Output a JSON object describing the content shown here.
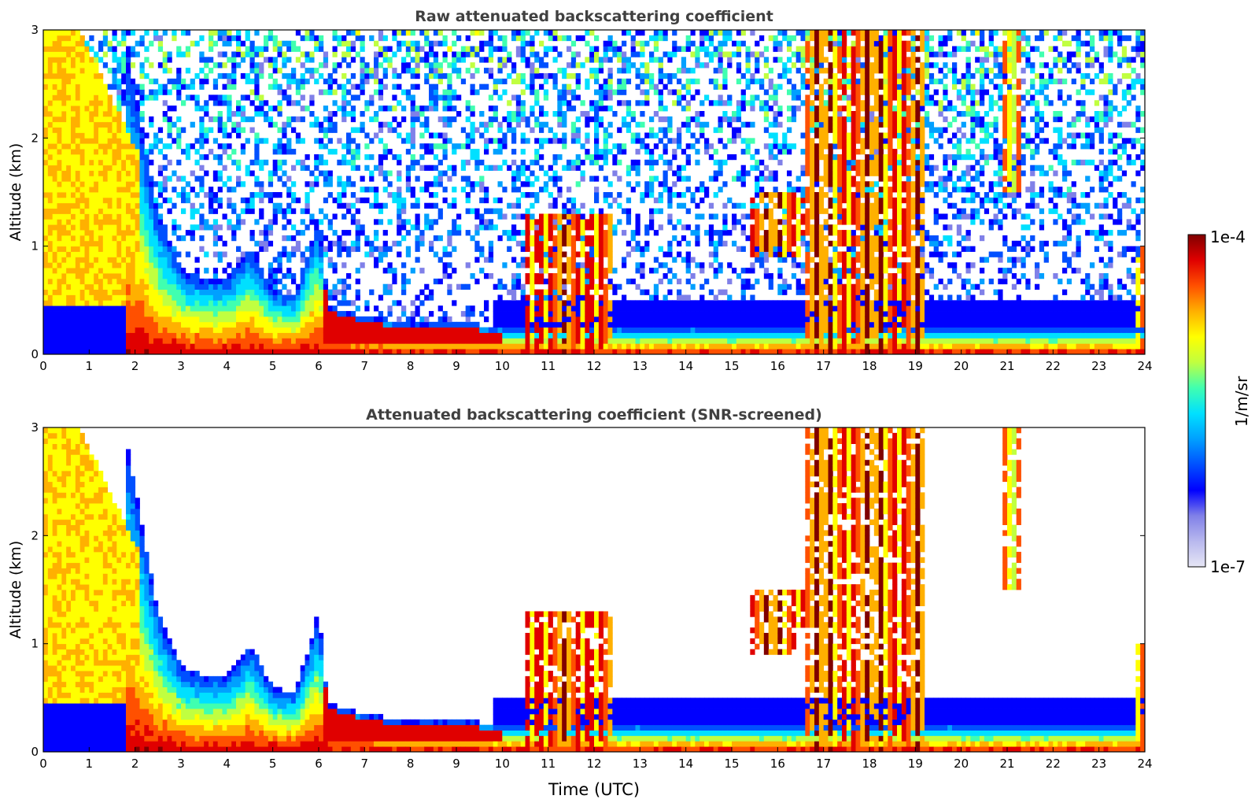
{
  "figure": {
    "colorbar": {
      "label": "1/m/sr",
      "max_label": "1e-4",
      "min_label": "1e-7",
      "vmin": 1e-07,
      "vmax": 0.0001,
      "scale": "log",
      "colormap": [
        "#e6e6f5",
        "#b8b8ee",
        "#8080e8",
        "#0000ff",
        "#0050ff",
        "#00a0ff",
        "#00e0ff",
        "#40ffb0",
        "#c0ff40",
        "#ffff00",
        "#ffb000",
        "#ff5000",
        "#e00000",
        "#800000"
      ]
    }
  },
  "chart_data": [
    {
      "type": "heatmap",
      "title": "Raw attenuated backscattering coefficient",
      "xlabel": "",
      "ylabel": "Altitude (km)",
      "xlim": [
        0,
        24
      ],
      "ylim": [
        0,
        3
      ],
      "xticks": [
        0,
        1,
        2,
        3,
        4,
        5,
        6,
        7,
        8,
        9,
        10,
        11,
        12,
        13,
        14,
        15,
        16,
        17,
        18,
        19,
        20,
        21,
        22,
        23,
        24
      ],
      "yticks": [
        0,
        1,
        2,
        3
      ],
      "aerosol_layer_top_km": [
        [
          0,
          0.45
        ],
        [
          1.8,
          2.9
        ],
        [
          2.5,
          1.3
        ],
        [
          3,
          0.8
        ],
        [
          3.5,
          0.7
        ],
        [
          4,
          0.7
        ],
        [
          4.5,
          1.0
        ],
        [
          5,
          0.6
        ],
        [
          5.5,
          0.55
        ],
        [
          6,
          1.3
        ],
        [
          6.2,
          0.45
        ],
        [
          7,
          0.35
        ],
        [
          8,
          0.28
        ],
        [
          9,
          0.3
        ],
        [
          10,
          0.25
        ]
      ],
      "cloud_features": [
        {
          "x_start": 10.5,
          "x_end": 12.4,
          "base_km": 0,
          "top_km": 1.3,
          "level": "high"
        },
        {
          "x_start": 15.4,
          "x_end": 16.6,
          "base_km": 0.9,
          "top_km": 1.5,
          "level": "high"
        },
        {
          "x_start": 16.6,
          "x_end": 19.2,
          "base_km": 0,
          "top_km": 3.0,
          "level": "high"
        },
        {
          "x_start": 20.9,
          "x_end": 21.3,
          "base_km": 1.5,
          "top_km": 3.0,
          "level": "mid"
        },
        {
          "x_start": 23.8,
          "x_end": 24.0,
          "base_km": 0,
          "top_km": 1.0,
          "level": "high"
        }
      ],
      "noise_region": "upper atmosphere speckle (1e-7 to 1e-5)"
    },
    {
      "type": "heatmap",
      "title": "Attenuated backscattering coefficient (SNR-screened)",
      "xlabel": "Time (UTC)",
      "ylabel": "Altitude (km)",
      "xlim": [
        0,
        24
      ],
      "ylim": [
        0,
        3
      ],
      "xticks": [
        0,
        1,
        2,
        3,
        4,
        5,
        6,
        7,
        8,
        9,
        10,
        11,
        12,
        13,
        14,
        15,
        16,
        17,
        18,
        19,
        20,
        21,
        22,
        23,
        24
      ],
      "yticks": [
        0,
        1,
        2,
        3
      ],
      "noise_region": "screened out (blank)"
    }
  ]
}
